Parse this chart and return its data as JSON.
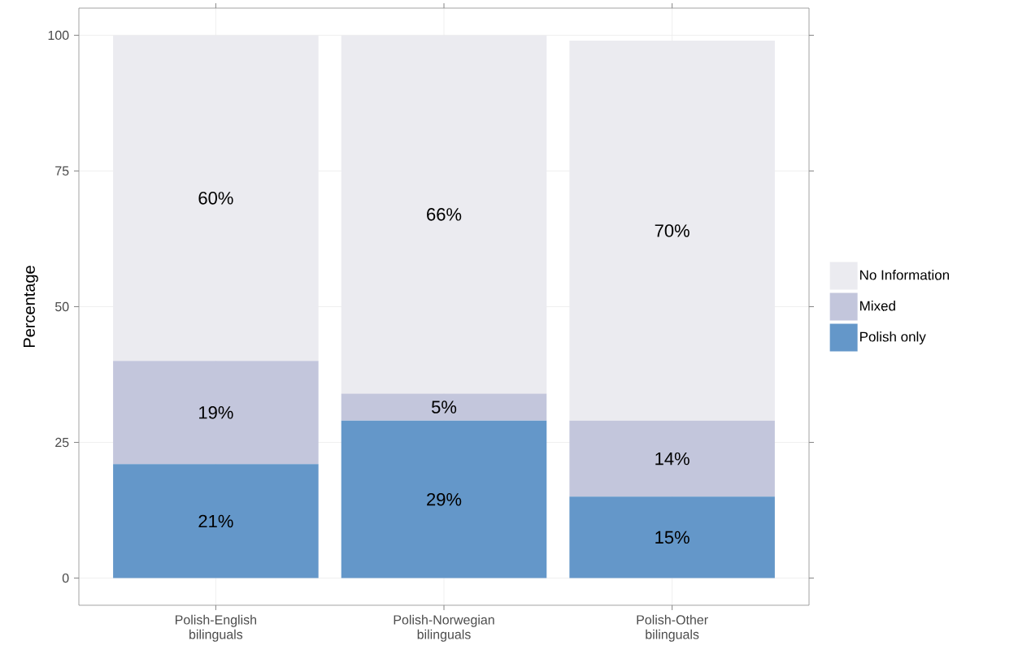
{
  "chart_data": {
    "type": "bar",
    "stacked": true,
    "ylabel": "Percentage",
    "categories": [
      "Polish-English bilinguals",
      "Polish-Norwegian bilinguals",
      "Polish-Other bilinguals"
    ],
    "series": [
      {
        "name": "Polish only",
        "color": "#6497c9",
        "values": [
          21,
          29,
          15
        ],
        "value_labels": [
          "21%",
          "29%",
          "15%"
        ]
      },
      {
        "name": "Mixed",
        "color": "#c3c6dc",
        "values": [
          19,
          5,
          14
        ],
        "value_labels": [
          "19%",
          "5%",
          "14%"
        ]
      },
      {
        "name": "No Information",
        "color": "#ebebf0",
        "values": [
          60,
          66,
          70
        ],
        "value_labels": [
          "60%",
          "66%",
          "70%"
        ]
      }
    ],
    "ylim": [
      -5,
      105
    ],
    "yticks": [
      0,
      25,
      50,
      75,
      100
    ],
    "grid": true,
    "legend": "right"
  }
}
